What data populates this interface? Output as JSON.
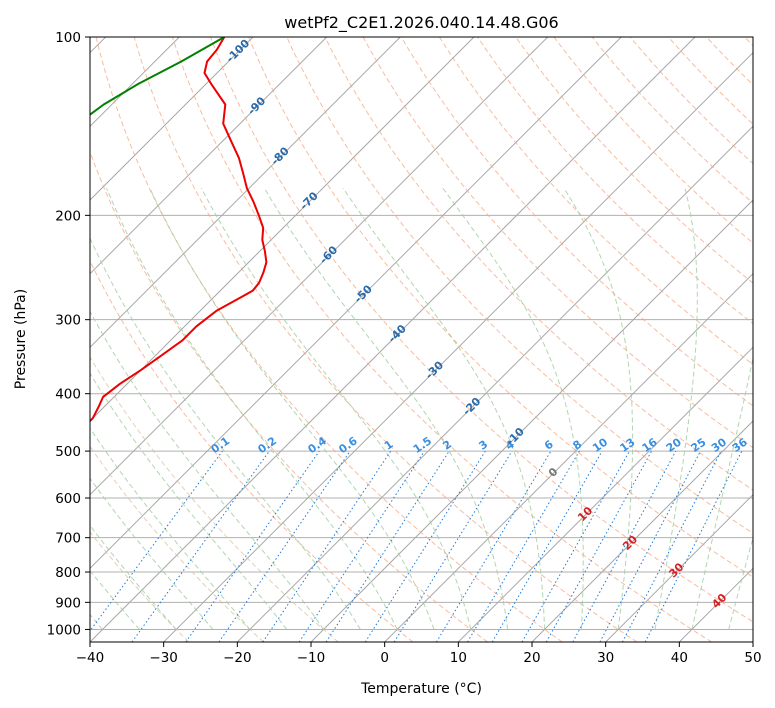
{
  "chart_data": {
    "type": "skew-t",
    "title": "wetPf2_C2E1.2026.040.14.48.G06",
    "xlabel": "Temperature (°C)",
    "ylabel": "Pressure (hPa)",
    "xlim": [
      -40,
      50
    ],
    "ylim": [
      1050,
      100
    ],
    "x_ticks": [
      -40,
      -30,
      -20,
      -10,
      0,
      10,
      20,
      30,
      40,
      50
    ],
    "x_tick_labels": [
      "−40",
      "−30",
      "−20",
      "−10",
      "0",
      "10",
      "20",
      "30",
      "40",
      "50"
    ],
    "y_ticks": [
      100,
      200,
      300,
      400,
      500,
      600,
      700,
      800,
      900,
      1000
    ],
    "y_tick_labels": [
      "100",
      "200",
      "300",
      "400",
      "500",
      "600",
      "700",
      "800",
      "900",
      "1000"
    ],
    "isotherm_labels": [
      "-100",
      "-90",
      "-80",
      "-70",
      "-60",
      "-50",
      "-40",
      "-30",
      "-20",
      "-10",
      "0",
      "10",
      "20",
      "30",
      "40"
    ],
    "isotherm_label_pressures": [
      105,
      130,
      158,
      188,
      232,
      270,
      315,
      363,
      418,
      470,
      540,
      635,
      710,
      790,
      890
    ],
    "mixing_ratio_labels": [
      "0.1",
      "0.2",
      "0.4",
      "0.6",
      "1",
      "1.5",
      "2",
      "3",
      "4",
      "6",
      "8",
      "10",
      "13",
      "16",
      "20",
      "25",
      "30",
      "36"
    ],
    "mixing_ratio_values": [
      0.1,
      0.2,
      0.4,
      0.6,
      1,
      1.5,
      2,
      3,
      4,
      6,
      8,
      10,
      13,
      16,
      20,
      25,
      30,
      36
    ],
    "series": [
      {
        "name": "Temperature",
        "color": "#ee0000",
        "pressure": [
          840,
          810,
          760,
          720,
          690,
          665,
          650,
          620,
          590,
          560,
          520,
          500,
          470,
          440,
          420,
          405,
          385,
          365,
          345,
          325,
          308,
          290,
          275,
          268,
          260,
          250,
          240,
          230,
          220,
          210,
          200,
          190,
          180,
          170,
          160,
          150,
          140,
          130,
          120,
          115,
          110,
          105,
          100
        ],
        "temperature": [
          -68,
          -68.2,
          -68,
          -68.5,
          -68.6,
          -68.6,
          -68.2,
          -68.5,
          -69,
          -69.5,
          -70,
          -70,
          -70,
          -70,
          -70.8,
          -71.5,
          -71,
          -70,
          -69.2,
          -68.4,
          -68.4,
          -67.8,
          -66.3,
          -65.6,
          -65.8,
          -66.6,
          -67.6,
          -69.3,
          -71.2,
          -72.7,
          -75,
          -77.5,
          -80.3,
          -82.8,
          -85.5,
          -88.8,
          -92.3,
          -94.6,
          -99.3,
          -101.7,
          -102.9,
          -103.2,
          -103.9
        ]
      },
      {
        "name": "Dewpoint",
        "color": "#008000",
        "pressure": [
          840,
          820,
          800,
          780,
          760,
          740,
          720,
          700,
          690,
          680,
          670,
          660,
          650,
          640,
          630,
          625,
          620,
          610,
          600,
          590,
          580,
          570,
          560,
          550,
          540,
          525,
          515,
          505,
          495,
          485,
          475,
          465,
          460,
          455,
          450,
          445,
          440,
          425,
          410,
          400,
          390,
          380,
          370,
          360,
          355,
          350,
          340,
          320,
          300,
          285,
          275,
          268,
          260,
          250,
          240,
          230,
          220,
          210,
          200,
          190,
          180,
          170,
          160,
          150,
          140,
          130,
          120,
          110,
          100
        ],
        "temperature": [
          -71,
          -71.6,
          -72,
          -72.9,
          -73.9,
          -75.5,
          -77.8,
          -80.5,
          -82.3,
          -85.2,
          -88.3,
          -91.2,
          -92.1,
          -93.2,
          -94,
          -94.2,
          -93.8,
          -93.3,
          -93.2,
          -94.9,
          -98.4,
          -101.8,
          -103.2,
          -103.5,
          -103.5,
          -102.6,
          -104.1,
          -106.7,
          -107,
          -108.5,
          -110.5,
          -112.4,
          -114.1,
          -116.2,
          -117.5,
          -118.3,
          -118.2,
          -112.1,
          -108.6,
          -106.4,
          -102.6,
          -99.9,
          -98.4,
          -96.4,
          -94.8,
          -94,
          -94.4,
          -96.4,
          -99.1,
          -101.6,
          -104.2,
          -107.6,
          -115.8,
          -125.4,
          -129.7,
          -129.9,
          -124.6,
          -121,
          -115.3,
          -111.3,
          -109.4,
          -109,
          -110.4,
          -111.1,
          -112,
          -111.1,
          -109.2,
          -106.4,
          -103.9
        ]
      }
    ]
  }
}
